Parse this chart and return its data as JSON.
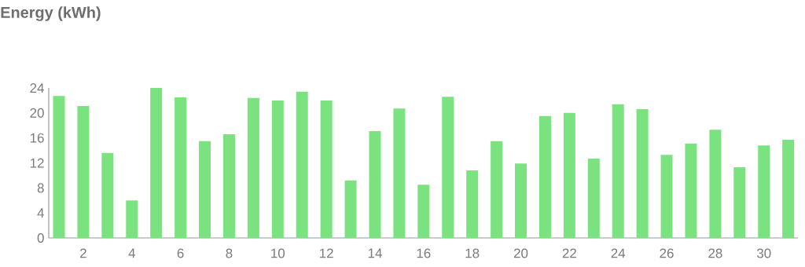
{
  "chart_data": {
    "type": "bar",
    "title": "Energy (kWh)",
    "x": [
      1,
      2,
      3,
      4,
      5,
      6,
      7,
      8,
      9,
      10,
      11,
      12,
      13,
      14,
      15,
      16,
      17,
      18,
      19,
      20,
      21,
      22,
      23,
      24,
      25,
      26,
      27,
      28,
      29,
      30,
      31
    ],
    "values": [
      22.7,
      21.1,
      13.6,
      6.0,
      24.0,
      22.5,
      15.5,
      16.6,
      22.4,
      22.0,
      23.4,
      22.0,
      9.2,
      17.1,
      20.7,
      8.5,
      22.6,
      10.8,
      15.5,
      11.9,
      19.5,
      20.0,
      12.7,
      21.4,
      20.6,
      13.3,
      15.1,
      17.3,
      11.3,
      14.8,
      15.7
    ],
    "color": "#7ae27f",
    "xlim": [
      0.58,
      31.4
    ],
    "xticks": [
      2,
      4,
      6,
      8,
      10,
      12,
      14,
      16,
      18,
      20,
      22,
      24,
      26,
      28,
      30
    ],
    "ylim": [
      0,
      24
    ],
    "yticks": [
      0,
      4,
      8,
      12,
      16,
      20,
      24
    ],
    "grid": false
  }
}
